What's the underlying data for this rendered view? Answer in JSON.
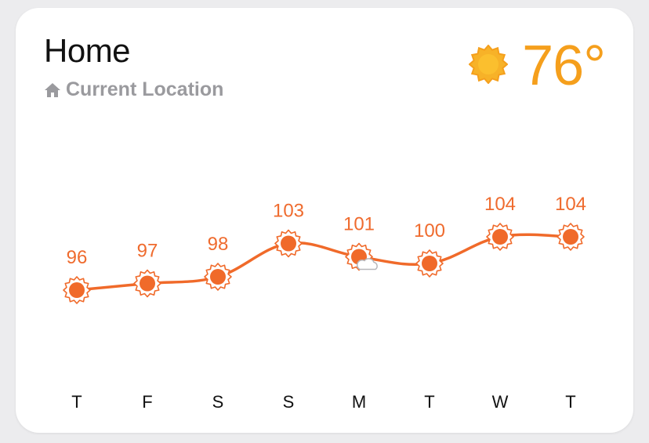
{
  "header": {
    "title": "Home",
    "location_label": "Current Location",
    "location_icon": "house-icon"
  },
  "current": {
    "temperature": "76°",
    "condition_icon": "sun-icon"
  },
  "colors": {
    "accent": "#f59f1c",
    "line": "#f06a2a",
    "label": "#ef6b2e",
    "muted": "#9a9a9e"
  },
  "chart_data": {
    "type": "line",
    "categories": [
      "T",
      "F",
      "S",
      "S",
      "M",
      "T",
      "W",
      "T"
    ],
    "values": [
      96,
      97,
      98,
      103,
      101,
      100,
      104,
      104
    ],
    "icons": [
      "sun-icon",
      "sun-icon",
      "sun-icon",
      "sun-icon",
      "sun-cloud-icon",
      "sun-icon",
      "sun-icon",
      "sun-icon"
    ],
    "title": "",
    "xlabel": "",
    "ylabel": "",
    "grid": false,
    "legend": "none"
  }
}
